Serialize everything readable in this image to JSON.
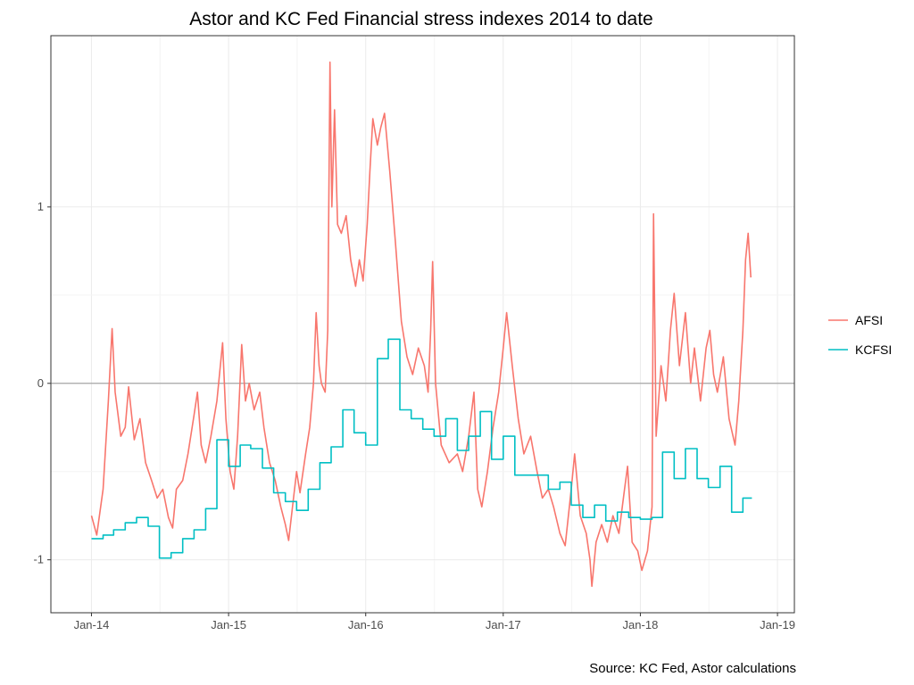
{
  "chart_data": {
    "type": "line",
    "title": "Astor and KC Fed Financial stress indexes 2014 to date",
    "caption": "Source: KC Fed, Astor calculations",
    "xlabel": "",
    "ylabel": "",
    "x_ticks": [
      {
        "date": "2014-01-01",
        "label": "Jan-14"
      },
      {
        "date": "2015-01-01",
        "label": "Jan-15"
      },
      {
        "date": "2016-01-01",
        "label": "Jan-16"
      },
      {
        "date": "2017-01-01",
        "label": "Jan-17"
      },
      {
        "date": "2018-01-01",
        "label": "Jan-18"
      },
      {
        "date": "2019-01-01",
        "label": "Jan-19"
      }
    ],
    "y_ticks": [
      {
        "value": -1,
        "label": "-1"
      },
      {
        "value": 0,
        "label": "0"
      },
      {
        "value": 1,
        "label": "1"
      }
    ],
    "xlim": [
      "2013-09-15",
      "2019-02-15"
    ],
    "ylim": [
      -1.3,
      1.97
    ],
    "grid": true,
    "zero_line": true,
    "legend_position": "right",
    "series": [
      {
        "name": "AFSI",
        "color": "#F8766D",
        "step": false,
        "points": [
          [
            "2014-01-01",
            -0.75
          ],
          [
            "2014-01-15",
            -0.86
          ],
          [
            "2014-02-01",
            -0.6
          ],
          [
            "2014-02-15",
            -0.1
          ],
          [
            "2014-02-25",
            0.31
          ],
          [
            "2014-03-05",
            -0.05
          ],
          [
            "2014-03-20",
            -0.3
          ],
          [
            "2014-04-01",
            -0.25
          ],
          [
            "2014-04-10",
            -0.02
          ],
          [
            "2014-04-25",
            -0.32
          ],
          [
            "2014-05-10",
            -0.2
          ],
          [
            "2014-05-25",
            -0.45
          ],
          [
            "2014-06-10",
            -0.55
          ],
          [
            "2014-06-25",
            -0.65
          ],
          [
            "2014-07-10",
            -0.6
          ],
          [
            "2014-07-25",
            -0.76
          ],
          [
            "2014-08-05",
            -0.82
          ],
          [
            "2014-08-15",
            -0.6
          ],
          [
            "2014-09-01",
            -0.55
          ],
          [
            "2014-09-15",
            -0.4
          ],
          [
            "2014-10-01",
            -0.18
          ],
          [
            "2014-10-10",
            -0.05
          ],
          [
            "2014-10-20",
            -0.35
          ],
          [
            "2014-11-01",
            -0.45
          ],
          [
            "2014-11-15",
            -0.3
          ],
          [
            "2014-12-01",
            -0.1
          ],
          [
            "2014-12-16",
            0.23
          ],
          [
            "2014-12-25",
            -0.2
          ],
          [
            "2015-01-05",
            -0.5
          ],
          [
            "2015-01-15",
            -0.6
          ],
          [
            "2015-01-25",
            -0.3
          ],
          [
            "2015-02-05",
            0.22
          ],
          [
            "2015-02-15",
            -0.1
          ],
          [
            "2015-02-25",
            0.0
          ],
          [
            "2015-03-10",
            -0.15
          ],
          [
            "2015-03-25",
            -0.05
          ],
          [
            "2015-04-05",
            -0.25
          ],
          [
            "2015-04-20",
            -0.45
          ],
          [
            "2015-05-05",
            -0.55
          ],
          [
            "2015-05-20",
            -0.7
          ],
          [
            "2015-06-01",
            -0.8
          ],
          [
            "2015-06-10",
            -0.89
          ],
          [
            "2015-06-20",
            -0.7
          ],
          [
            "2015-07-01",
            -0.5
          ],
          [
            "2015-07-10",
            -0.62
          ],
          [
            "2015-07-25",
            -0.4
          ],
          [
            "2015-08-05",
            -0.25
          ],
          [
            "2015-08-15",
            0.0
          ],
          [
            "2015-08-22",
            0.4
          ],
          [
            "2015-08-30",
            0.1
          ],
          [
            "2015-09-05",
            0.0
          ],
          [
            "2015-09-15",
            -0.05
          ],
          [
            "2015-09-22",
            0.3
          ],
          [
            "2015-09-28",
            1.82
          ],
          [
            "2015-10-03",
            1.0
          ],
          [
            "2015-10-10",
            1.55
          ],
          [
            "2015-10-18",
            0.9
          ],
          [
            "2015-10-28",
            0.85
          ],
          [
            "2015-11-10",
            0.95
          ],
          [
            "2015-11-22",
            0.7
          ],
          [
            "2015-12-05",
            0.55
          ],
          [
            "2015-12-15",
            0.7
          ],
          [
            "2015-12-25",
            0.58
          ],
          [
            "2016-01-05",
            0.9
          ],
          [
            "2016-01-12",
            1.2
          ],
          [
            "2016-01-20",
            1.5
          ],
          [
            "2016-02-01",
            1.35
          ],
          [
            "2016-02-10",
            1.45
          ],
          [
            "2016-02-20",
            1.53
          ],
          [
            "2016-03-05",
            1.2
          ],
          [
            "2016-03-20",
            0.8
          ],
          [
            "2016-04-05",
            0.35
          ],
          [
            "2016-04-20",
            0.15
          ],
          [
            "2016-05-05",
            0.05
          ],
          [
            "2016-05-20",
            0.2
          ],
          [
            "2016-06-05",
            0.1
          ],
          [
            "2016-06-15",
            -0.05
          ],
          [
            "2016-06-22",
            0.3
          ],
          [
            "2016-06-27",
            0.69
          ],
          [
            "2016-07-05",
            0.0
          ],
          [
            "2016-07-20",
            -0.35
          ],
          [
            "2016-08-10",
            -0.45
          ],
          [
            "2016-09-01",
            -0.4
          ],
          [
            "2016-09-15",
            -0.5
          ],
          [
            "2016-10-01",
            -0.3
          ],
          [
            "2016-10-15",
            -0.05
          ],
          [
            "2016-10-25",
            -0.6
          ],
          [
            "2016-11-05",
            -0.7
          ],
          [
            "2016-11-20",
            -0.5
          ],
          [
            "2016-12-05",
            -0.25
          ],
          [
            "2016-12-20",
            -0.05
          ],
          [
            "2017-01-01",
            0.2
          ],
          [
            "2017-01-10",
            0.4
          ],
          [
            "2017-01-25",
            0.1
          ],
          [
            "2017-02-10",
            -0.2
          ],
          [
            "2017-02-25",
            -0.4
          ],
          [
            "2017-03-15",
            -0.3
          ],
          [
            "2017-04-01",
            -0.5
          ],
          [
            "2017-04-15",
            -0.65
          ],
          [
            "2017-05-01",
            -0.6
          ],
          [
            "2017-05-15",
            -0.7
          ],
          [
            "2017-06-01",
            -0.85
          ],
          [
            "2017-06-15",
            -0.92
          ],
          [
            "2017-07-01",
            -0.6
          ],
          [
            "2017-07-10",
            -0.4
          ],
          [
            "2017-07-25",
            -0.75
          ],
          [
            "2017-08-10",
            -0.85
          ],
          [
            "2017-08-20",
            -1.0
          ],
          [
            "2017-08-25",
            -1.15
          ],
          [
            "2017-09-05",
            -0.9
          ],
          [
            "2017-09-20",
            -0.8
          ],
          [
            "2017-10-05",
            -0.9
          ],
          [
            "2017-10-20",
            -0.75
          ],
          [
            "2017-11-05",
            -0.85
          ],
          [
            "2017-11-20",
            -0.6
          ],
          [
            "2017-11-28",
            -0.47
          ],
          [
            "2017-12-10",
            -0.9
          ],
          [
            "2017-12-25",
            -0.95
          ],
          [
            "2018-01-05",
            -1.06
          ],
          [
            "2018-01-20",
            -0.95
          ],
          [
            "2018-02-01",
            -0.7
          ],
          [
            "2018-02-05",
            0.96
          ],
          [
            "2018-02-12",
            -0.3
          ],
          [
            "2018-02-25",
            0.1
          ],
          [
            "2018-03-10",
            -0.1
          ],
          [
            "2018-03-22",
            0.3
          ],
          [
            "2018-04-01",
            0.51
          ],
          [
            "2018-04-15",
            0.1
          ],
          [
            "2018-05-01",
            0.4
          ],
          [
            "2018-05-15",
            0.0
          ],
          [
            "2018-05-25",
            0.2
          ],
          [
            "2018-06-10",
            -0.1
          ],
          [
            "2018-06-25",
            0.2
          ],
          [
            "2018-07-05",
            0.3
          ],
          [
            "2018-07-15",
            0.05
          ],
          [
            "2018-07-25",
            -0.05
          ],
          [
            "2018-08-10",
            0.15
          ],
          [
            "2018-08-25",
            -0.2
          ],
          [
            "2018-09-10",
            -0.35
          ],
          [
            "2018-09-20",
            -0.1
          ],
          [
            "2018-10-01",
            0.3
          ],
          [
            "2018-10-08",
            0.7
          ],
          [
            "2018-10-15",
            0.85
          ],
          [
            "2018-10-22",
            0.6
          ]
        ]
      },
      {
        "name": "KCFSI",
        "color": "#00BFC4",
        "step": true,
        "points": [
          [
            "2014-01-01",
            -0.88
          ],
          [
            "2014-02-01",
            -0.86
          ],
          [
            "2014-03-01",
            -0.83
          ],
          [
            "2014-04-01",
            -0.79
          ],
          [
            "2014-05-01",
            -0.76
          ],
          [
            "2014-06-01",
            -0.81
          ],
          [
            "2014-07-01",
            -0.99
          ],
          [
            "2014-08-01",
            -0.96
          ],
          [
            "2014-09-01",
            -0.88
          ],
          [
            "2014-10-01",
            -0.83
          ],
          [
            "2014-11-01",
            -0.71
          ],
          [
            "2014-12-01",
            -0.32
          ],
          [
            "2015-01-01",
            -0.47
          ],
          [
            "2015-02-01",
            -0.35
          ],
          [
            "2015-03-01",
            -0.37
          ],
          [
            "2015-04-01",
            -0.48
          ],
          [
            "2015-05-01",
            -0.62
          ],
          [
            "2015-06-01",
            -0.67
          ],
          [
            "2015-07-01",
            -0.72
          ],
          [
            "2015-08-01",
            -0.6
          ],
          [
            "2015-09-01",
            -0.45
          ],
          [
            "2015-10-01",
            -0.36
          ],
          [
            "2015-11-01",
            -0.15
          ],
          [
            "2015-12-01",
            -0.28
          ],
          [
            "2016-01-01",
            -0.35
          ],
          [
            "2016-02-01",
            0.14
          ],
          [
            "2016-03-01",
            0.25
          ],
          [
            "2016-04-01",
            -0.15
          ],
          [
            "2016-05-01",
            -0.2
          ],
          [
            "2016-06-01",
            -0.26
          ],
          [
            "2016-07-01",
            -0.3
          ],
          [
            "2016-08-01",
            -0.2
          ],
          [
            "2016-09-01",
            -0.38
          ],
          [
            "2016-10-01",
            -0.3
          ],
          [
            "2016-11-01",
            -0.16
          ],
          [
            "2016-12-01",
            -0.43
          ],
          [
            "2017-01-01",
            -0.3
          ],
          [
            "2017-02-01",
            -0.52
          ],
          [
            "2017-03-01",
            -0.52
          ],
          [
            "2017-04-01",
            -0.52
          ],
          [
            "2017-05-01",
            -0.6
          ],
          [
            "2017-06-01",
            -0.56
          ],
          [
            "2017-07-01",
            -0.69
          ],
          [
            "2017-08-01",
            -0.76
          ],
          [
            "2017-09-01",
            -0.69
          ],
          [
            "2017-10-01",
            -0.78
          ],
          [
            "2017-11-01",
            -0.73
          ],
          [
            "2017-12-01",
            -0.76
          ],
          [
            "2018-01-01",
            -0.77
          ],
          [
            "2018-02-01",
            -0.76
          ],
          [
            "2018-03-01",
            -0.39
          ],
          [
            "2018-04-01",
            -0.54
          ],
          [
            "2018-05-01",
            -0.37
          ],
          [
            "2018-06-01",
            -0.54
          ],
          [
            "2018-07-01",
            -0.59
          ],
          [
            "2018-08-01",
            -0.47
          ],
          [
            "2018-09-01",
            -0.73
          ],
          [
            "2018-10-01",
            -0.65
          ],
          [
            "2018-10-25",
            -0.65
          ]
        ]
      }
    ]
  }
}
